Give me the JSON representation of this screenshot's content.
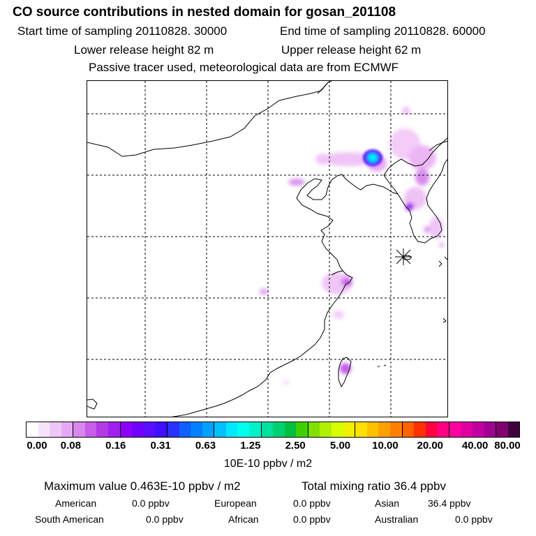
{
  "header": {
    "title": "CO  source contributions in nested domain for gosan_201108",
    "start_time": "Start time of sampling 20110828. 30000",
    "end_time": "End time of sampling 20110828. 60000",
    "lower_height": "Lower release height   82 m",
    "upper_height": "Upper release height   62 m",
    "tracer_note": "Passive tracer used, meteorological data are from ECMWF"
  },
  "colorbar": {
    "colors": [
      "#ffffff",
      "#f7e4fb",
      "#efc8f7",
      "#e6a9f3",
      "#d986ee",
      "#c65ee9",
      "#b33ae4",
      "#a020f0",
      "#8c00ff",
      "#7000ff",
      "#5a10ff",
      "#4010ff",
      "#2a30ff",
      "#1060ff",
      "#0080ff",
      "#00a0ff",
      "#00c0ff",
      "#00e8ff",
      "#00ffee",
      "#00f0c8",
      "#00e0a0",
      "#00d070",
      "#00c040",
      "#40d000",
      "#80e000",
      "#b0f000",
      "#d8ff00",
      "#f0f000",
      "#ffe000",
      "#ffc000",
      "#ffa000",
      "#ff8000",
      "#ff6000",
      "#ff3000",
      "#ff0040",
      "#ff0080",
      "#ff00a0",
      "#e000a0",
      "#c000a0",
      "#a00090",
      "#800070",
      "#400040"
    ],
    "ticks": [
      "0.00",
      "0.08",
      "0.16",
      "0.31",
      "0.63",
      "1.25",
      "2.50",
      "5.00",
      "10.00",
      "20.00",
      "40.00",
      "80.00"
    ],
    "unit_label": "10E-10 ppbv / m2"
  },
  "stats": {
    "max_value": "Maximum value  0.463E-10 ppbv / m2",
    "total_mixing": "Total mixing ratio       36.4 ppbv",
    "american_label": "American",
    "american_value": "0.0 ppbv",
    "european_label": "European",
    "european_value": "0.0 ppbv",
    "asian_label": "Asian",
    "asian_value": "36.4 ppbv",
    "south_american_label": "South American",
    "south_american_value": "0.0 ppbv",
    "african_label": "African",
    "african_value": "0.0 ppbv",
    "australian_label": "Australian",
    "australian_value": "0.0 ppbv"
  }
}
